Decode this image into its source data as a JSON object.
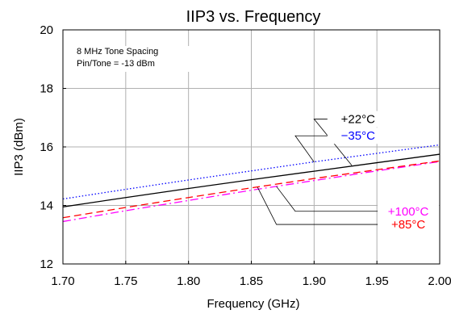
{
  "chart_data": {
    "type": "line",
    "title": "IIP3 vs. Frequency",
    "xlabel": "Frequency (GHz)",
    "ylabel": "IIP3 (dBm)",
    "xlim": [
      1.7,
      2.0
    ],
    "ylim": [
      12,
      20
    ],
    "x_ticks": [
      1.7,
      1.75,
      1.8,
      1.85,
      1.9,
      1.95,
      2.0
    ],
    "x_tick_labels": [
      "1.70",
      "1.75",
      "1.80",
      "1.85",
      "1.90",
      "1.95",
      "2.00"
    ],
    "y_ticks": [
      12,
      14,
      16,
      18,
      20
    ],
    "y_tick_labels": [
      "12",
      "14",
      "16",
      "18",
      "20"
    ],
    "grid": {
      "vertical": true,
      "horizontal": true,
      "color": "#b0b0b0"
    },
    "annotations": [
      "8 MHz Tone Spacing",
      "Pin/Tone = -13 dBm"
    ],
    "series": [
      {
        "name": "+22°C",
        "color": "#000000",
        "dash": "solid",
        "x": [
          1.7,
          1.75,
          1.8,
          1.85,
          1.9,
          1.95,
          2.0
        ],
        "y": [
          13.95,
          14.27,
          14.58,
          14.88,
          15.17,
          15.46,
          15.75
        ]
      },
      {
        "name": "−35°C",
        "color": "#0000ff",
        "dash": "dotted",
        "x": [
          1.7,
          1.75,
          1.8,
          1.85,
          1.9,
          1.95,
          2.0
        ],
        "y": [
          14.22,
          14.55,
          14.87,
          15.18,
          15.49,
          15.78,
          16.07
        ]
      },
      {
        "name": "+100°C",
        "color": "#ff00ff",
        "dash": "dashdot",
        "x": [
          1.7,
          1.75,
          1.8,
          1.85,
          1.9,
          1.95,
          2.0
        ],
        "y": [
          13.45,
          13.82,
          14.17,
          14.52,
          14.85,
          15.18,
          15.5
        ]
      },
      {
        "name": "+85°C",
        "color": "#ff0000",
        "dash": "dashed",
        "x": [
          1.7,
          1.75,
          1.8,
          1.85,
          1.9,
          1.95,
          2.0
        ],
        "y": [
          13.58,
          13.93,
          14.27,
          14.6,
          14.92,
          15.22,
          15.52
        ]
      }
    ],
    "callouts": [
      {
        "series": 0,
        "label_x": 1.935,
        "label_y": 16.95,
        "line_end": [
          1.938,
          16.95
        ],
        "bend": [
          1.9,
          16.95
        ],
        "tip": [
          1.93,
          15.37
        ]
      },
      {
        "series": 1,
        "label_x": 1.935,
        "label_y": 16.38,
        "line_end": [
          1.938,
          16.38
        ],
        "bend": [
          1.885,
          16.38
        ],
        "tip": [
          1.9,
          15.48
        ]
      },
      {
        "series": 2,
        "label_x": 1.975,
        "label_y": 13.8,
        "line_end": [
          1.965,
          13.8
        ],
        "bend": [
          1.885,
          13.8
        ],
        "tip": [
          1.87,
          14.65
        ]
      },
      {
        "series": 3,
        "label_x": 1.975,
        "label_y": 13.35,
        "line_end": [
          1.965,
          13.35
        ],
        "bend": [
          1.87,
          13.35
        ],
        "tip": [
          1.855,
          14.62
        ]
      }
    ]
  }
}
